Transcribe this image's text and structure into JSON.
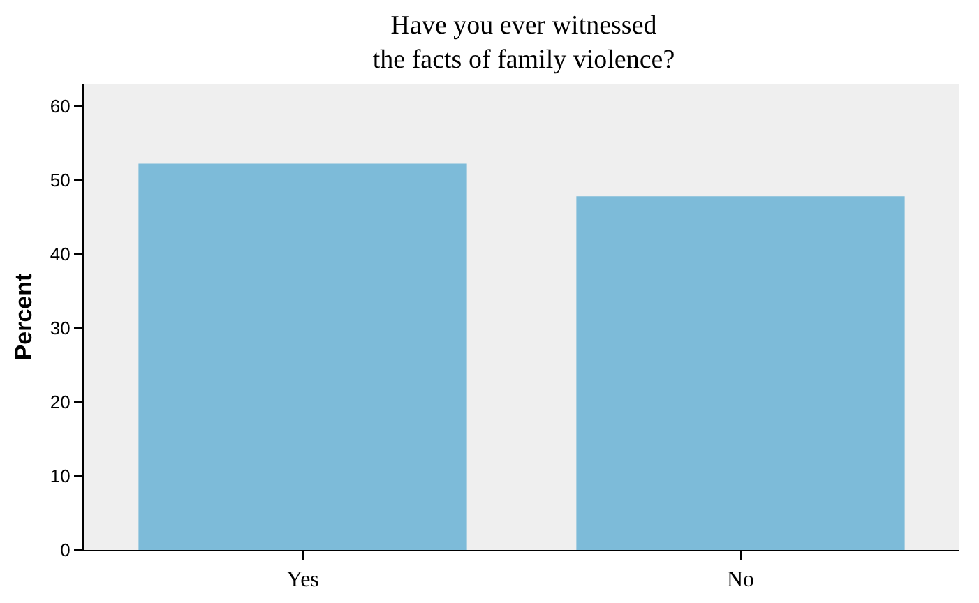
{
  "chart_data": {
    "type": "bar",
    "title": "Have you ever witnessed\nthe facts of family violence?",
    "ylabel": "Percent",
    "categories": [
      "Yes",
      "No"
    ],
    "values": [
      52.2,
      47.8
    ],
    "color": "#7dbbd9",
    "ylim": [
      0,
      63
    ],
    "yticks": [
      0,
      10,
      20,
      30,
      40,
      50,
      60
    ],
    "grid": false,
    "legend": false
  }
}
